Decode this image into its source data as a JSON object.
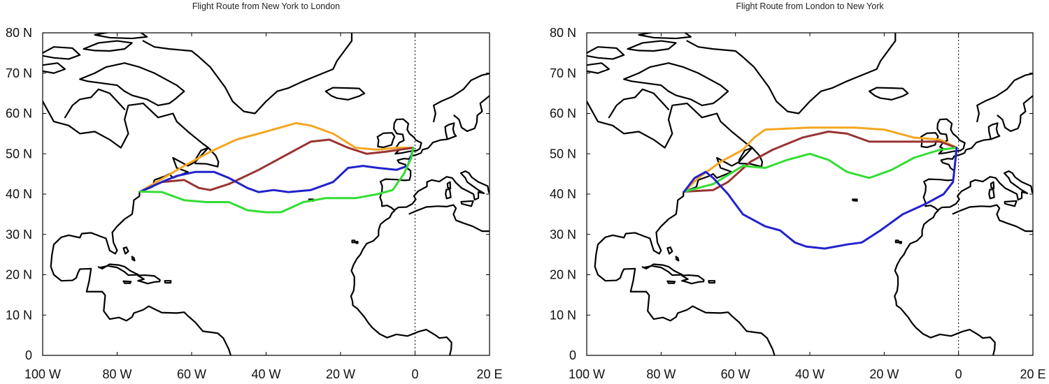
{
  "axes": {
    "lon_range": [
      -100,
      20
    ],
    "lat_range": [
      0,
      80
    ],
    "x_ticks": [
      {
        "value": -100,
        "label": "100 W"
      },
      {
        "value": -80,
        "label": "80 W"
      },
      {
        "value": -60,
        "label": "60 W"
      },
      {
        "value": -40,
        "label": "40 W"
      },
      {
        "value": -20,
        "label": "20 W"
      },
      {
        "value": 0,
        "label": "0"
      },
      {
        "value": 20,
        "label": "20 E"
      }
    ],
    "y_ticks": [
      {
        "value": 0,
        "label": "0"
      },
      {
        "value": 10,
        "label": "10 N"
      },
      {
        "value": 20,
        "label": "20 N"
      },
      {
        "value": 30,
        "label": "30 N"
      },
      {
        "value": 40,
        "label": "40 N"
      },
      {
        "value": 50,
        "label": "50 N"
      },
      {
        "value": 60,
        "label": "60 N"
      },
      {
        "value": 70,
        "label": "70 N"
      },
      {
        "value": 80,
        "label": "80 N"
      }
    ],
    "prime_meridian_dotted": true
  },
  "coastline_color": "#000000",
  "panels": [
    {
      "id": "ny-to-london",
      "title": "Flight Route from New York to London",
      "routes": [
        {
          "color": "#f5a623",
          "points": [
            [
              -73.8,
              40.6
            ],
            [
              -70,
              42.7
            ],
            [
              -62,
              47
            ],
            [
              -55,
              50.5
            ],
            [
              -48,
              53.5
            ],
            [
              -40,
              55.5
            ],
            [
              -32,
              57.6
            ],
            [
              -28,
              57
            ],
            [
              -22,
              55
            ],
            [
              -16,
              51.5
            ],
            [
              -10,
              51
            ],
            [
              -5,
              51.5
            ],
            [
              -0.5,
              51.5
            ]
          ]
        },
        {
          "color": "#993333",
          "points": [
            [
              -73.8,
              40.6
            ],
            [
              -68,
              43
            ],
            [
              -62,
              43.5
            ],
            [
              -58,
              41.5
            ],
            [
              -55,
              41
            ],
            [
              -50,
              42.5
            ],
            [
              -42,
              46
            ],
            [
              -35,
              49.5
            ],
            [
              -28,
              53
            ],
            [
              -23,
              53.5
            ],
            [
              -18,
              51.5
            ],
            [
              -13,
              50
            ],
            [
              -8,
              50.5
            ],
            [
              -0.5,
              51.5
            ]
          ]
        },
        {
          "color": "#2222cc",
          "points": [
            [
              -73.8,
              40.6
            ],
            [
              -68,
              43
            ],
            [
              -64,
              44.5
            ],
            [
              -59,
              45.5
            ],
            [
              -54,
              45.5
            ],
            [
              -50,
              44
            ],
            [
              -45,
              41.5
            ],
            [
              -42,
              40.5
            ],
            [
              -38,
              41
            ],
            [
              -34,
              40.5
            ],
            [
              -28,
              41
            ],
            [
              -22,
              43
            ],
            [
              -18,
              46.5
            ],
            [
              -14,
              47
            ],
            [
              -10,
              46.5
            ],
            [
              -5,
              46
            ],
            [
              -2,
              47
            ],
            [
              -1,
              49.5
            ],
            [
              -0.5,
              51.5
            ]
          ]
        },
        {
          "color": "#33dd33",
          "points": [
            [
              -73.8,
              40.6
            ],
            [
              -68,
              40.5
            ],
            [
              -62,
              38.5
            ],
            [
              -56,
              38
            ],
            [
              -50,
              38
            ],
            [
              -45,
              36
            ],
            [
              -40,
              35.5
            ],
            [
              -36,
              35.5
            ],
            [
              -30,
              38
            ],
            [
              -24,
              39
            ],
            [
              -16,
              39
            ],
            [
              -10,
              40
            ],
            [
              -6,
              41
            ],
            [
              -3,
              45
            ],
            [
              -1,
              49
            ],
            [
              -0.5,
              51.5
            ]
          ]
        }
      ]
    },
    {
      "id": "london-to-ny",
      "title": "Flight Route from London to New York",
      "routes": [
        {
          "color": "#f5a623",
          "points": [
            [
              -0.5,
              51.5
            ],
            [
              -5,
              53.5
            ],
            [
              -12,
              54
            ],
            [
              -20,
              56
            ],
            [
              -28,
              56.5
            ],
            [
              -40,
              56.5
            ],
            [
              -52,
              56
            ],
            [
              -55,
              54
            ],
            [
              -58,
              51
            ],
            [
              -64,
              48
            ],
            [
              -70,
              44
            ],
            [
              -73.8,
              40.6
            ]
          ]
        },
        {
          "color": "#993333",
          "points": [
            [
              -0.5,
              51.5
            ],
            [
              -5,
              53
            ],
            [
              -15,
              53
            ],
            [
              -24,
              53
            ],
            [
              -30,
              55
            ],
            [
              -35,
              55.5
            ],
            [
              -42,
              54
            ],
            [
              -50,
              51
            ],
            [
              -56,
              48
            ],
            [
              -62,
              43
            ],
            [
              -66,
              41
            ],
            [
              -73.8,
              40.6
            ]
          ]
        },
        {
          "color": "#33dd33",
          "points": [
            [
              -0.5,
              51.5
            ],
            [
              -5,
              51
            ],
            [
              -12,
              49
            ],
            [
              -18,
              46
            ],
            [
              -24,
              44
            ],
            [
              -30,
              45.5
            ],
            [
              -35,
              48.5
            ],
            [
              -40,
              50
            ],
            [
              -46,
              48.5
            ],
            [
              -52,
              46.5
            ],
            [
              -58,
              47
            ],
            [
              -66,
              42.5
            ],
            [
              -73.8,
              40.6
            ]
          ]
        },
        {
          "color": "#2222cc",
          "points": [
            [
              -0.5,
              51.5
            ],
            [
              -1,
              47
            ],
            [
              -1.5,
              43
            ],
            [
              -4,
              40
            ],
            [
              -9,
              37.5
            ],
            [
              -15,
              35
            ],
            [
              -21,
              31
            ],
            [
              -26,
              28
            ],
            [
              -30,
              27.5
            ],
            [
              -36,
              26.5
            ],
            [
              -41,
              27
            ],
            [
              -44,
              28
            ],
            [
              -48,
              31
            ],
            [
              -52,
              32
            ],
            [
              -58,
              35
            ],
            [
              -62,
              40
            ],
            [
              -66,
              44
            ],
            [
              -68,
              45.5
            ],
            [
              -71,
              44
            ],
            [
              -73.8,
              40.6
            ]
          ]
        }
      ]
    }
  ]
}
